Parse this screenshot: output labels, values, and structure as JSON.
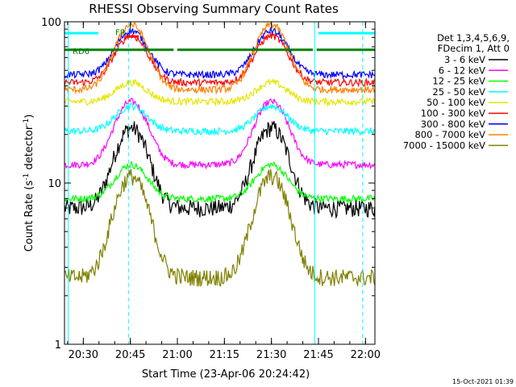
{
  "chart_data": {
    "type": "line",
    "title": "RHESSI Observing Summary Count Rates",
    "xlabel": "Start Time (23-Apr-06 20:24:42)",
    "ylabel_main": "Count Rate (s",
    "ylabel_sup": "-1",
    "ylabel_tail": " detector",
    "ylabel_sup2": "-1",
    "ylabel_end": ")",
    "yscale": "log",
    "ylim": [
      1,
      100
    ],
    "xlim_minutes": [
      20.4,
      22.05
    ],
    "x_ticks": [
      "20:30",
      "20:45",
      "21:00",
      "21:15",
      "21:30",
      "21:45",
      "22:00"
    ],
    "y_ticks": [
      "1",
      "10",
      "100"
    ],
    "legend_header": [
      "Det 1,3,4,5,6,9,",
      "FDecim 1, Att 0"
    ],
    "series": [
      {
        "name": "3 - 6 keV",
        "color": "#000000",
        "base": 7,
        "peak": 22
      },
      {
        "name": "6 - 12 keV",
        "color": "#ff00ff",
        "base": 13,
        "peak": 32
      },
      {
        "name": "12 - 25 keV",
        "color": "#00ff00",
        "base": 8,
        "peak": 13
      },
      {
        "name": "25 - 50 keV",
        "color": "#00ffff",
        "base": 21,
        "peak": 30
      },
      {
        "name": "50 - 100 keV",
        "color": "#e6e600",
        "base": 32,
        "peak": 42
      },
      {
        "name": "100 - 300 keV",
        "color": "#ff0000",
        "base": 42,
        "peak": 82
      },
      {
        "name": "300 - 800 keV",
        "color": "#0000ff",
        "base": 47,
        "peak": 88
      },
      {
        "name": "800 - 7000 keV",
        "color": "#ff8000",
        "base": 38,
        "peak": 96
      },
      {
        "name": "7000 - 15000 keV",
        "color": "#808000",
        "base": 2.6,
        "peak": 11
      }
    ],
    "annotations": {
      "rd6": "RD6",
      "fr": "FR",
      "rd6_value": 67,
      "fr_value": 81
    },
    "footer_timestamp": "15-Oct-2021 01:39"
  }
}
